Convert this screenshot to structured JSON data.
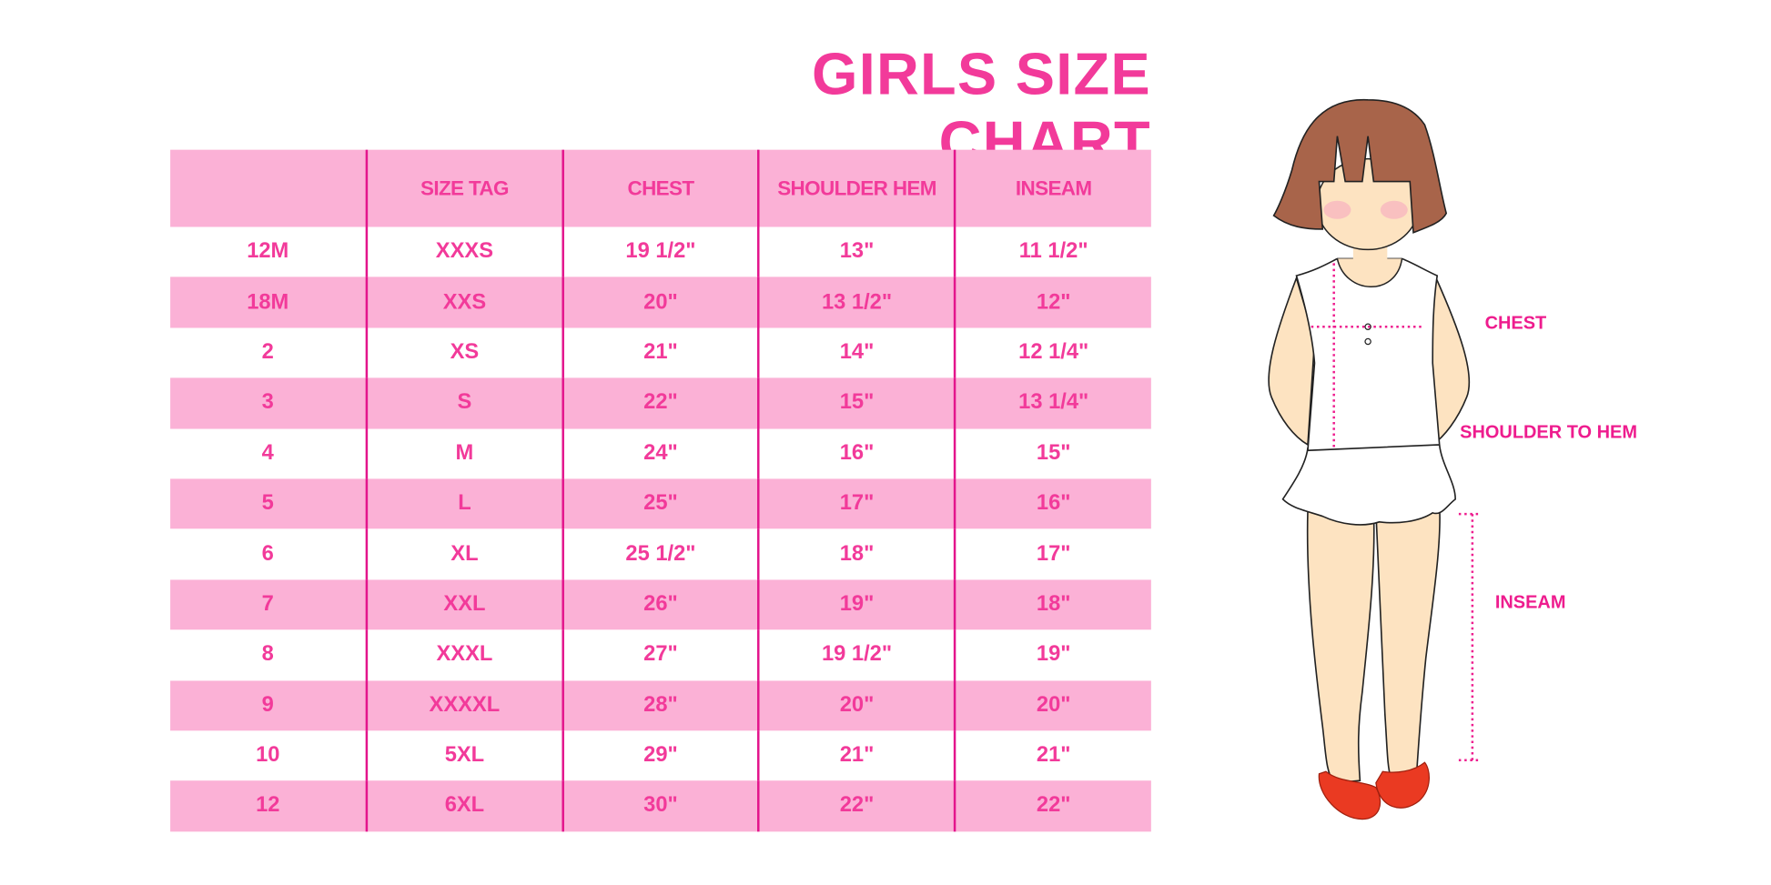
{
  "title": "GIRLS SIZE CHART",
  "table": {
    "headers": [
      "",
      "SIZE TAG",
      "CHEST",
      "SHOULDER HEM",
      "INSEAM"
    ],
    "rows": [
      [
        "12M",
        "XXXS",
        "19 1/2\"",
        "13\"",
        "11 1/2\""
      ],
      [
        "18M",
        "XXS",
        "20\"",
        "13 1/2\"",
        "12\""
      ],
      [
        "2",
        "XS",
        "21\"",
        "14\"",
        "12 1/4\""
      ],
      [
        "3",
        "S",
        "22\"",
        "15\"",
        "13 1/4\""
      ],
      [
        "4",
        "M",
        "24\"",
        "16\"",
        "15\""
      ],
      [
        "5",
        "L",
        "25\"",
        "17\"",
        "16\""
      ],
      [
        "6",
        "XL",
        "25 1/2\"",
        "18\"",
        "17\""
      ],
      [
        "7",
        "XXL",
        "26\"",
        "19\"",
        "18\""
      ],
      [
        "8",
        "XXXL",
        "27\"",
        "19 1/2\"",
        "19\""
      ],
      [
        "9",
        "XXXXL",
        "28\"",
        "20\"",
        "20\""
      ],
      [
        "10",
        "5XL",
        "29\"",
        "21\"",
        "21\""
      ],
      [
        "12",
        "6XL",
        "30\"",
        "22\"",
        "22\""
      ]
    ]
  },
  "diagram_labels": {
    "chest": "CHEST",
    "shoulder_to_hem": "SHOULDER TO HEM",
    "inseam": "INSEAM"
  },
  "colors": {
    "accent": "#f23a9a",
    "row_pink": "#fbb1d6",
    "divider": "#e3158c"
  }
}
